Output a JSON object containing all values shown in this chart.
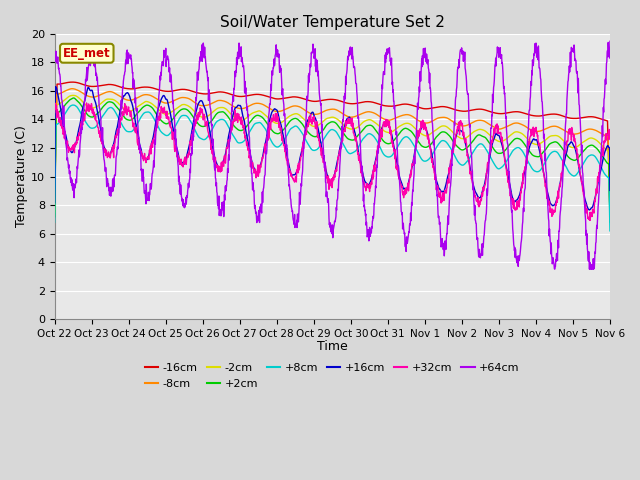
{
  "title": "Soil/Water Temperature Set 2",
  "xlabel": "Time",
  "ylabel": "Temperature (C)",
  "ylim": [
    0,
    20
  ],
  "yticks": [
    0,
    2,
    4,
    6,
    8,
    10,
    12,
    14,
    16,
    18,
    20
  ],
  "x_labels": [
    "Oct 22",
    "Oct 23",
    "Oct 24",
    "Oct 25",
    "Oct 26",
    "Oct 27",
    "Oct 28",
    "Oct 29",
    "Oct 30",
    "Oct 31",
    "Nov 1",
    "Nov 2",
    "Nov 3",
    "Nov 4",
    "Nov 5",
    "Nov 6"
  ],
  "series_order": [
    "-16cm",
    "-8cm",
    "-2cm",
    "+2cm",
    "+8cm",
    "+16cm",
    "+32cm",
    "+64cm"
  ],
  "series": {
    "-16cm": {
      "color": "#dd0000"
    },
    "-8cm": {
      "color": "#ff8800"
    },
    "-2cm": {
      "color": "#dddd00"
    },
    "+2cm": {
      "color": "#00cc00"
    },
    "+8cm": {
      "color": "#00cccc"
    },
    "+16cm": {
      "color": "#0000cc"
    },
    "+32cm": {
      "color": "#ff00aa"
    },
    "+64cm": {
      "color": "#aa00ee"
    }
  },
  "annotation_text": "EE_met",
  "annotation_color": "#cc0000",
  "annotation_bg": "#ffffcc",
  "annotation_border": "#888800",
  "bg_color": "#e0e0e0",
  "plot_bg": "#e8e8e8",
  "grid_color": "#ffffff",
  "figsize": [
    6.4,
    4.8
  ],
  "dpi": 100
}
